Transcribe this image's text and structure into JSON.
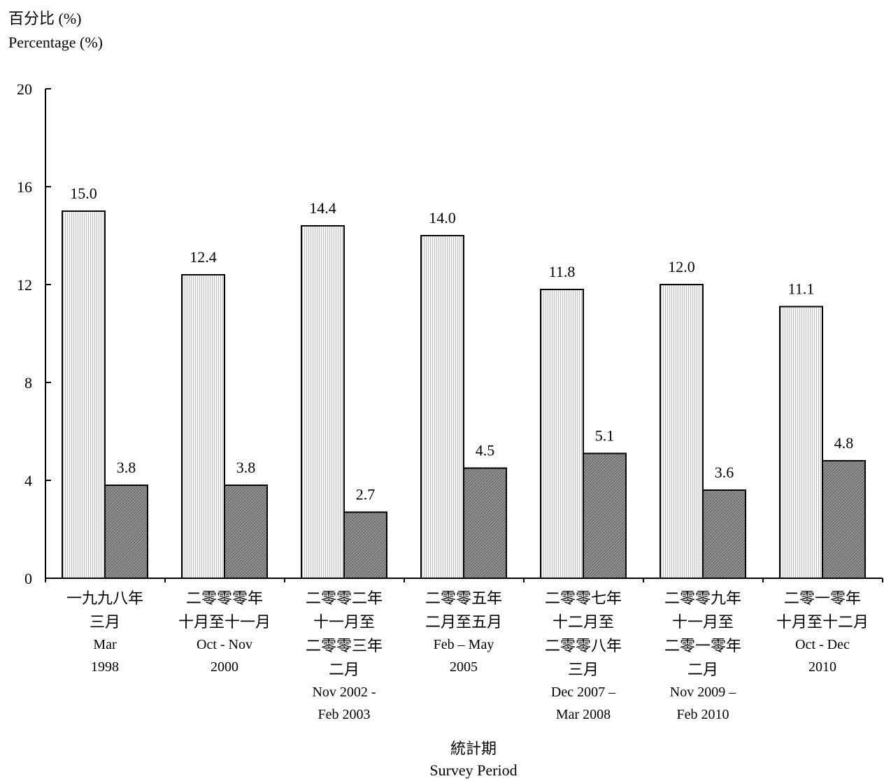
{
  "chart_data": {
    "type": "bar",
    "ylabel_zh": "百分比 (%)",
    "ylabel_en": "Percentage (%)",
    "xlabel_zh": "統計期",
    "xlabel_en": "Survey Period",
    "ylim": [
      0,
      20
    ],
    "yticks": [
      0,
      4,
      8,
      12,
      16,
      20
    ],
    "grid": false,
    "legend": "none",
    "categories": [
      {
        "zh": [
          "一九九八年",
          "三月"
        ],
        "en": [
          "Mar",
          "1998"
        ]
      },
      {
        "zh": [
          "二零零零年",
          "十月至十一月"
        ],
        "en": [
          "Oct - Nov",
          "2000"
        ]
      },
      {
        "zh": [
          "二零零二年",
          "十一月至",
          "二零零三年",
          "二月"
        ],
        "en": [
          "Nov 2002 -",
          "Feb 2003"
        ]
      },
      {
        "zh": [
          "二零零五年",
          "二月至五月"
        ],
        "en": [
          "Feb – May",
          "2005"
        ]
      },
      {
        "zh": [
          "二零零七年",
          "十二月至",
          "二零零八年",
          "三月"
        ],
        "en": [
          "Dec 2007 –",
          "Mar 2008"
        ]
      },
      {
        "zh": [
          "二零零九年",
          "十一月至",
          "二零一零年",
          "二月"
        ],
        "en": [
          "Nov 2009 –",
          "Feb 2010"
        ]
      },
      {
        "zh": [
          "二零一零年",
          "十月至十二月"
        ],
        "en": [
          "Oct - Dec",
          "2010"
        ]
      }
    ],
    "series": [
      {
        "values": [
          15.0,
          12.4,
          14.4,
          14.0,
          11.8,
          12.0,
          11.1
        ],
        "color": "#e6e6e6",
        "pattern": "light-vertical-stripes"
      },
      {
        "values": [
          3.8,
          3.8,
          2.7,
          4.5,
          5.1,
          3.6,
          4.8
        ],
        "color": "#8c8c8c",
        "pattern": "dark-diagonal-stripes"
      }
    ]
  }
}
